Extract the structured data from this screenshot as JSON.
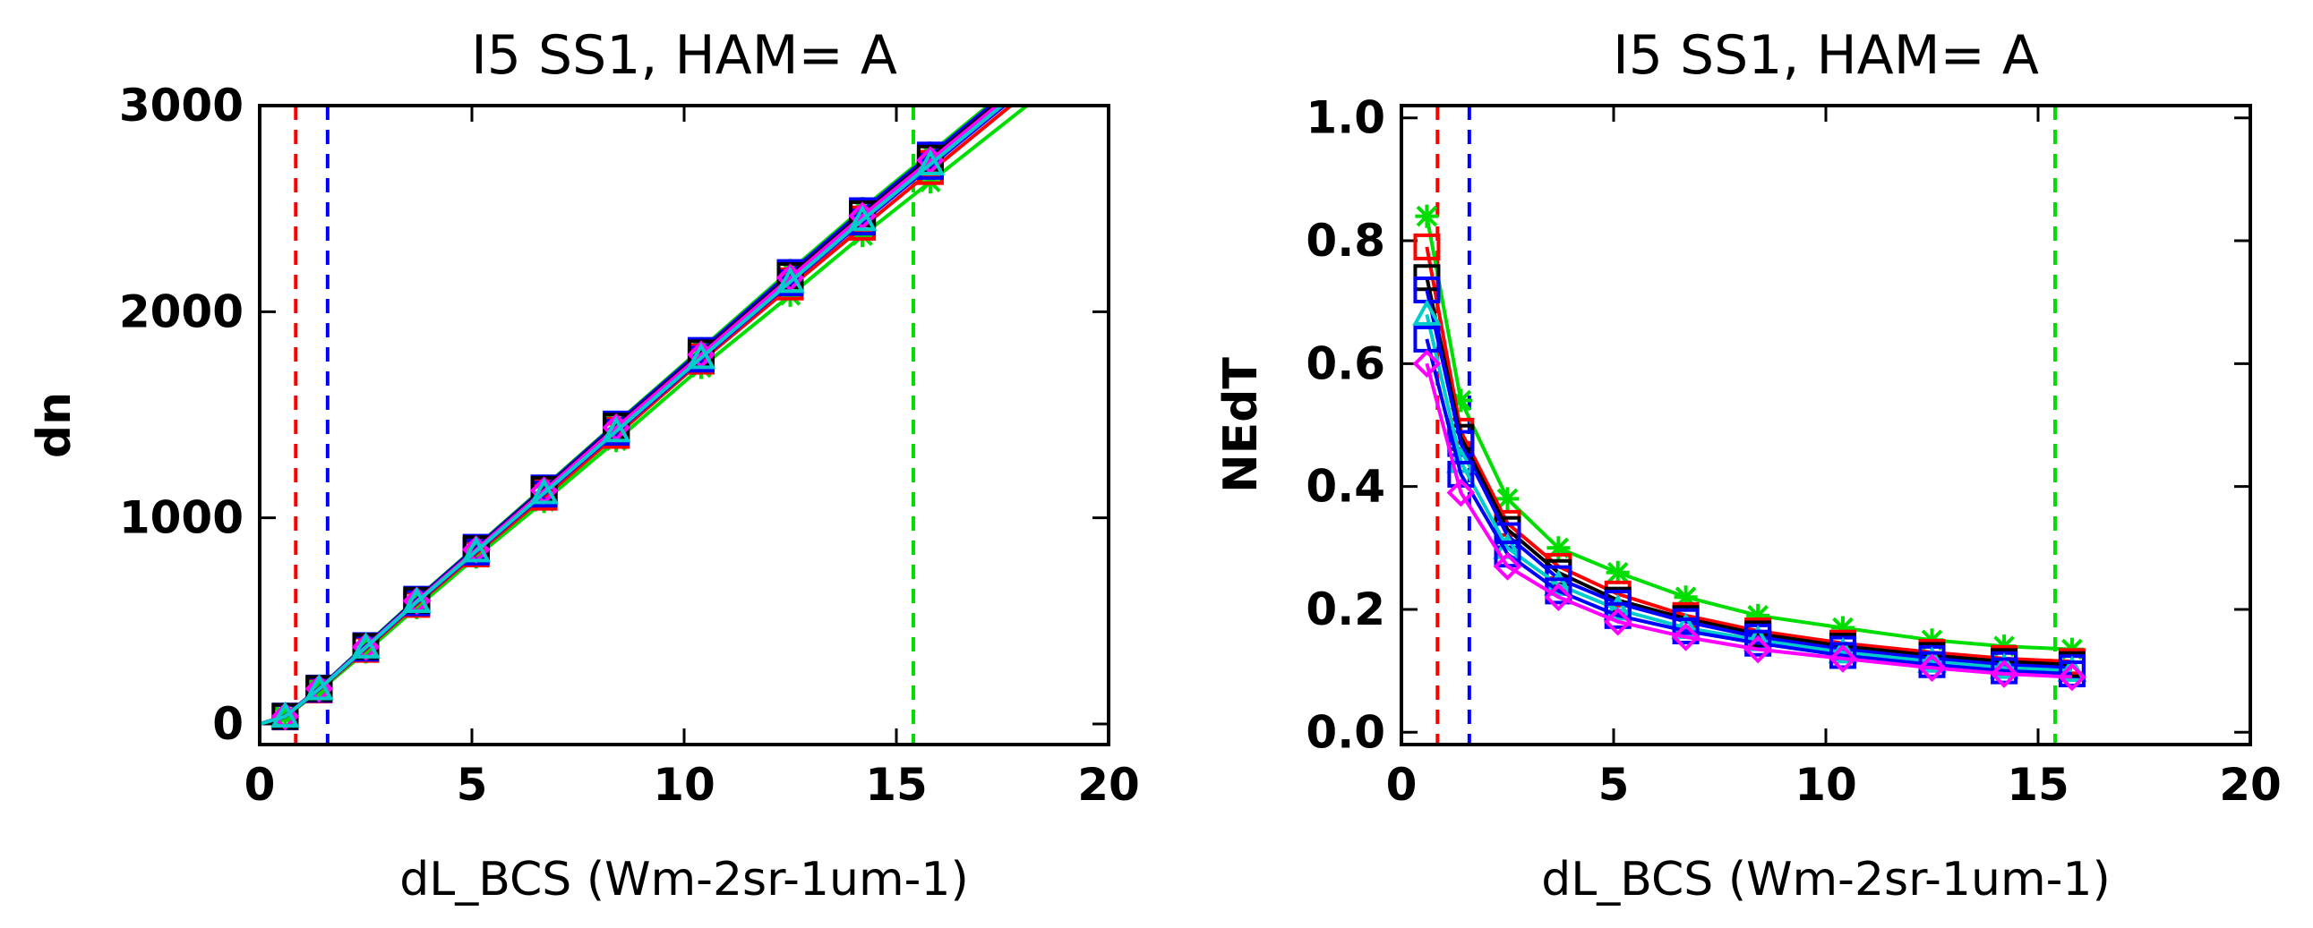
{
  "chart_data": [
    {
      "type": "line",
      "title": "I5 SS1, HAM= A",
      "xlabel": "dL_BCS (Wm-2sr-1um-1)",
      "ylabel": "dn",
      "xlim": [
        0,
        20
      ],
      "ylim": [
        -100,
        3000
      ],
      "xticks": [
        0,
        5,
        10,
        15,
        20
      ],
      "xtick_labels": [
        "0",
        "5",
        "10",
        "15",
        "20"
      ],
      "yticks": [
        0,
        1000,
        2000,
        3000
      ],
      "ytick_labels": [
        "0",
        "1000",
        "2000",
        "3000"
      ],
      "grid": false,
      "legend": "none",
      "vlines": [
        {
          "x": 0.85,
          "color": "#ff0000",
          "style": "dashed"
        },
        {
          "x": 1.6,
          "color": "#0000ff",
          "style": "dashed"
        },
        {
          "x": 15.4,
          "color": "#00dd00",
          "style": "dashed"
        }
      ],
      "x": [
        0.6,
        1.4,
        2.5,
        3.7,
        5.1,
        6.7,
        8.4,
        10.4,
        12.5,
        14.2,
        15.8
      ],
      "series": [
        {
          "color": "#00dd00",
          "marker": "asterisk",
          "values": [
            38,
            175,
            383,
            608,
            860,
            1150,
            1460,
            1820,
            2200,
            2500,
            2770
          ]
        },
        {
          "color": "#00dd00",
          "marker": "asterisk",
          "values": [
            32,
            160,
            350,
            565,
            810,
            1080,
            1375,
            1730,
            2080,
            2370,
            2630
          ]
        },
        {
          "color": "#ff0000",
          "marker": "square",
          "values": [
            36,
            170,
            372,
            593,
            840,
            1125,
            1425,
            1780,
            2150,
            2450,
            2720
          ]
        },
        {
          "color": "#ff0000",
          "marker": "square",
          "values": [
            34,
            165,
            362,
            580,
            825,
            1100,
            1400,
            1760,
            2120,
            2410,
            2680
          ]
        },
        {
          "color": "#0000ff",
          "marker": "square",
          "values": [
            38,
            174,
            380,
            605,
            857,
            1145,
            1455,
            1812,
            2190,
            2490,
            2760
          ]
        },
        {
          "color": "#0000ff",
          "marker": "square",
          "values": [
            35,
            168,
            368,
            588,
            834,
            1115,
            1415,
            1770,
            2140,
            2435,
            2705
          ]
        },
        {
          "color": "#000000",
          "marker": "square",
          "values": [
            37,
            172,
            376,
            600,
            850,
            1138,
            1445,
            1800,
            2175,
            2475,
            2745
          ]
        },
        {
          "color": "#ff00ff",
          "marker": "diamond",
          "values": [
            37,
            171,
            374,
            597,
            846,
            1132,
            1438,
            1792,
            2165,
            2465,
            2735
          ]
        },
        {
          "color": "#00cccc",
          "marker": "triangle",
          "values": [
            36,
            169,
            371,
            592,
            838,
            1120,
            1420,
            1776,
            2145,
            2445,
            2715
          ]
        }
      ]
    },
    {
      "type": "line",
      "title": "I5 SS1, HAM= A",
      "xlabel": "dL_BCS (Wm-2sr-1um-1)",
      "ylabel": "NEdT",
      "xlim": [
        0,
        20
      ],
      "ylim": [
        -0.02,
        1.02
      ],
      "xticks": [
        0,
        5,
        10,
        15,
        20
      ],
      "xtick_labels": [
        "0",
        "5",
        "10",
        "15",
        "20"
      ],
      "yticks": [
        0,
        0.2,
        0.4,
        0.6,
        0.8,
        1.0
      ],
      "ytick_labels": [
        "0.0",
        "0.2",
        "0.4",
        "0.6",
        "0.8",
        "1.0"
      ],
      "grid": false,
      "legend": "none",
      "vlines": [
        {
          "x": 0.85,
          "color": "#ff0000",
          "style": "dashed"
        },
        {
          "x": 1.6,
          "color": "#0000ff",
          "style": "dashed"
        },
        {
          "x": 15.4,
          "color": "#00dd00",
          "style": "dashed"
        }
      ],
      "x": [
        0.6,
        1.4,
        2.5,
        3.7,
        5.1,
        6.7,
        8.4,
        10.4,
        12.5,
        14.2,
        15.8
      ],
      "series": [
        {
          "color": "#00dd00",
          "marker": "asterisk",
          "values": [
            0.84,
            0.54,
            0.38,
            0.3,
            0.26,
            0.22,
            0.19,
            0.17,
            0.15,
            0.14,
            0.135
          ]
        },
        {
          "color": "#ff0000",
          "marker": "square",
          "values": [
            0.79,
            0.49,
            0.34,
            0.27,
            0.225,
            0.19,
            0.165,
            0.145,
            0.13,
            0.12,
            0.115
          ]
        },
        {
          "color": "#000000",
          "marker": "square",
          "values": [
            0.74,
            0.48,
            0.33,
            0.26,
            0.215,
            0.185,
            0.16,
            0.14,
            0.125,
            0.115,
            0.11
          ]
        },
        {
          "color": "#0000ff",
          "marker": "square",
          "values": [
            0.72,
            0.47,
            0.32,
            0.25,
            0.21,
            0.18,
            0.155,
            0.135,
            0.12,
            0.11,
            0.105
          ]
        },
        {
          "color": "#00cccc",
          "marker": "triangle",
          "values": [
            0.68,
            0.44,
            0.3,
            0.24,
            0.2,
            0.17,
            0.15,
            0.13,
            0.115,
            0.105,
            0.1
          ]
        },
        {
          "color": "#0000ff",
          "marker": "square",
          "values": [
            0.64,
            0.42,
            0.29,
            0.23,
            0.19,
            0.165,
            0.145,
            0.125,
            0.11,
            0.1,
            0.095
          ]
        },
        {
          "color": "#ff00ff",
          "marker": "diamond",
          "values": [
            0.6,
            0.39,
            0.27,
            0.22,
            0.18,
            0.155,
            0.135,
            0.12,
            0.105,
            0.095,
            0.09
          ]
        }
      ]
    }
  ]
}
